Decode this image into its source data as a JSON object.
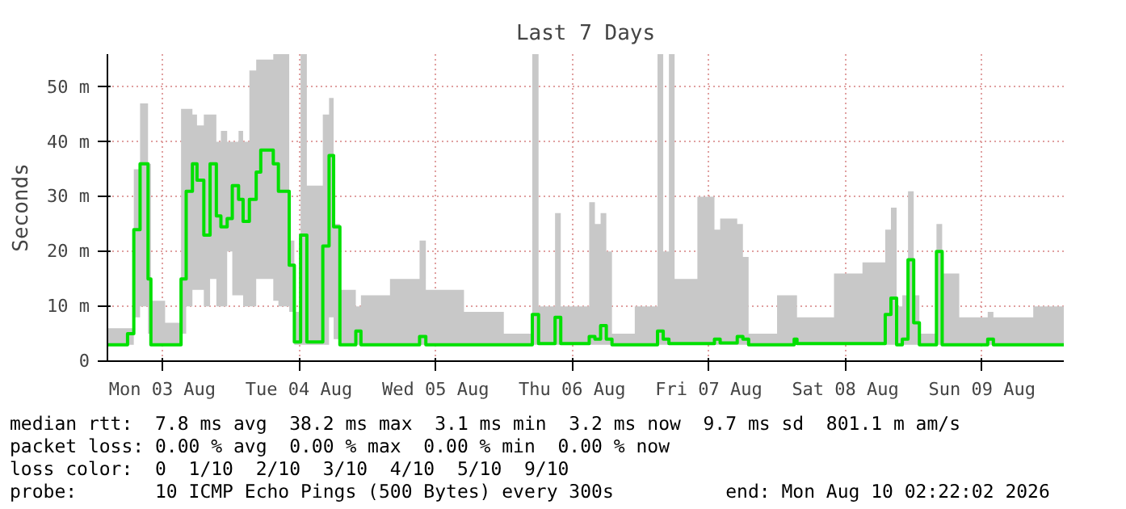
{
  "chart_data": {
    "type": "step",
    "title": "Last 7 Days",
    "ylabel": "Seconds",
    "x": [
      "2026-08-03T02:24",
      "2026-08-03T05:54",
      "2026-08-03T07:00",
      "2026-08-03T08:06",
      "2026-08-03T09:30",
      "2026-08-03T10:00",
      "2026-08-03T12:30",
      "2026-08-03T15:18",
      "2026-08-03T16:12",
      "2026-08-03T17:18",
      "2026-08-03T18:06",
      "2026-08-03T19:18",
      "2026-08-03T20:24",
      "2026-08-03T21:30",
      "2026-08-03T22:18",
      "2026-08-03T23:24",
      "2026-08-04T00:18",
      "2026-08-04T01:24",
      "2026-08-04T02:12",
      "2026-08-04T03:18",
      "2026-08-04T04:30",
      "2026-08-04T05:18",
      "2026-08-04T07:30",
      "2026-08-04T08:24",
      "2026-08-04T10:18",
      "2026-08-04T11:12",
      "2026-08-04T12:18",
      "2026-08-04T13:24",
      "2026-08-04T16:12",
      "2026-08-04T17:18",
      "2026-08-04T18:06",
      "2026-08-04T19:12",
      "2026-08-04T22:00",
      "2026-08-04T22:54",
      "2026-08-05T04:00",
      "2026-08-05T09:12",
      "2026-08-05T10:18",
      "2026-08-05T17:00",
      "2026-08-06T00:00",
      "2026-08-06T05:00",
      "2026-08-06T06:06",
      "2026-08-06T09:00",
      "2026-08-06T10:00",
      "2026-08-06T15:00",
      "2026-08-06T16:00",
      "2026-08-06T17:00",
      "2026-08-06T18:00",
      "2026-08-06T19:00",
      "2026-08-06T23:00",
      "2026-08-07T03:00",
      "2026-08-07T04:00",
      "2026-08-07T05:00",
      "2026-08-07T06:00",
      "2026-08-07T10:00",
      "2026-08-07T13:00",
      "2026-08-07T14:00",
      "2026-08-07T17:00",
      "2026-08-07T18:00",
      "2026-08-07T19:00",
      "2026-08-08T00:00",
      "2026-08-08T03:00",
      "2026-08-08T03:30",
      "2026-08-08T10:00",
      "2026-08-08T15:00",
      "2026-08-08T19:00",
      "2026-08-08T20:00",
      "2026-08-08T21:00",
      "2026-08-08T22:00",
      "2026-08-08T23:00",
      "2026-08-09T00:00",
      "2026-08-09T01:00",
      "2026-08-09T04:00",
      "2026-08-09T05:00",
      "2026-08-09T08:00",
      "2026-08-09T13:00",
      "2026-08-09T14:00",
      "2026-08-09T21:00",
      "2026-08-10T02:22"
    ],
    "series": [
      {
        "color": "#00e000",
        "values": [
          3,
          5,
          24,
          36,
          15,
          3,
          3,
          15,
          31,
          36,
          33,
          23,
          36,
          26.5,
          24.5,
          26,
          32,
          29.5,
          25.5,
          29.5,
          34.5,
          38.5,
          36,
          31,
          17.5,
          3.5,
          23,
          3.5,
          21,
          37.5,
          24.5,
          3,
          5.5,
          3,
          3,
          4.5,
          3,
          3,
          3,
          8.5,
          3.2,
          8,
          3.2,
          4.5,
          4,
          6.5,
          4,
          3,
          3,
          5.5,
          4,
          3.2,
          3.2,
          3.2,
          4,
          3.3,
          4.5,
          4,
          3,
          3,
          4,
          3.2,
          3.2,
          3.2,
          8.5,
          11.5,
          3,
          4,
          18.5,
          7,
          3,
          20,
          3,
          3,
          4,
          3,
          3,
          3.2
        ],
        "lower": [
          3,
          3,
          8,
          10,
          5,
          3,
          3,
          5,
          10,
          13,
          13,
          10,
          15,
          10,
          10,
          20,
          12,
          12,
          10,
          10,
          15,
          15,
          11,
          10,
          9,
          3,
          3,
          3,
          3,
          8,
          4,
          3,
          3,
          3,
          3,
          3,
          3,
          3,
          3,
          3,
          3,
          3,
          3,
          3,
          3,
          3,
          3,
          3,
          3,
          3,
          3,
          3,
          3,
          3,
          3,
          3,
          3,
          3,
          3,
          3,
          3,
          3,
          3,
          3,
          3,
          3,
          3,
          3,
          3,
          3,
          3,
          3,
          3,
          3,
          3,
          3,
          3,
          3
        ],
        "upper": [
          6,
          6,
          35,
          47,
          36,
          11,
          7,
          46,
          46,
          45,
          43,
          45,
          45,
          40,
          42,
          40,
          40,
          42,
          40,
          53,
          55,
          55,
          56,
          56,
          22,
          9,
          56,
          32,
          45,
          48,
          25,
          13,
          10,
          12,
          15,
          22,
          13,
          9,
          5,
          56,
          10,
          27,
          10,
          29,
          25,
          27,
          20,
          5,
          10,
          56,
          20,
          56,
          15,
          30,
          24,
          26,
          25,
          19,
          5,
          12,
          12,
          8,
          16,
          18,
          24,
          28,
          10,
          12,
          31,
          12,
          5,
          25,
          16,
          8,
          9,
          8,
          10,
          7
        ]
      }
    ],
    "xlim": [
      "2026-08-03T02:22",
      "2026-08-10T02:22"
    ],
    "xticks": [
      {
        "value": "2026-08-03T12:00",
        "label": "Mon 03 Aug"
      },
      {
        "value": "2026-08-04T12:00",
        "label": "Tue 04 Aug"
      },
      {
        "value": "2026-08-05T12:00",
        "label": "Wed 05 Aug"
      },
      {
        "value": "2026-08-06T12:00",
        "label": "Thu 06 Aug"
      },
      {
        "value": "2026-08-07T12:00",
        "label": "Fri 07 Aug"
      },
      {
        "value": "2026-08-08T12:00",
        "label": "Sat 08 Aug"
      },
      {
        "value": "2026-08-09T12:00",
        "label": "Sun 09 Aug"
      }
    ],
    "ylim": [
      0,
      56
    ],
    "yticks": [
      0,
      {
        "value": 10,
        "label": "10 m"
      },
      {
        "value": 20,
        "label": "20 m"
      },
      {
        "value": 30,
        "label": "30 m"
      },
      {
        "value": 40,
        "label": "40 m"
      },
      {
        "value": 50,
        "label": "50 m"
      }
    ],
    "grid": true,
    "marker": "none",
    "line_style": "solid",
    "annotations": [
      "median rtt:  7.8 ms avg  38.2 ms max  3.1 ms min  3.2 ms now  9.7 ms sd  801.1 m am/s",
      "packet loss: 0.00 % avg  0.00 % max  0.00 % min  0.00 % now",
      "loss color:  0  1/10  2/10  3/10  4/10  5/10  9/10",
      "probe:       10 ICMP Echo Pings (500 Bytes) every 300s          end: Mon Aug 10 02:22:02 2026"
    ]
  }
}
